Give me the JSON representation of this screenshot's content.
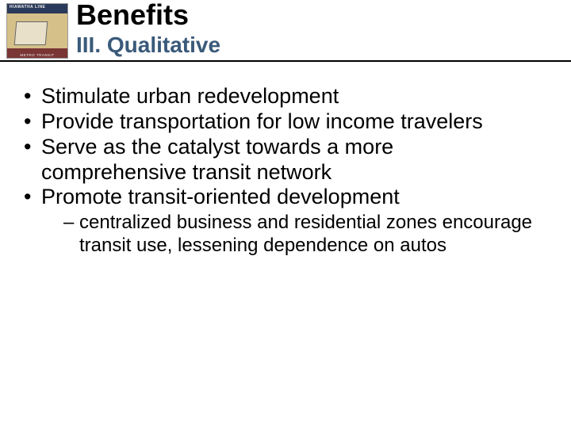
{
  "header": {
    "title": "Benefits",
    "subtitle": "III. Qualitative",
    "title_color": "#000000",
    "subtitle_color": "#3a5a7a",
    "logo": {
      "top_text": "HIAWATHA LINE",
      "bottom_text": "METRO TRANSIT",
      "top_band_color": "#2a3a5a",
      "mid_band_color": "#d4c088",
      "bottom_band_color": "#7a3535"
    }
  },
  "bullets": [
    {
      "text": "Stimulate urban redevelopment"
    },
    {
      "text": "Provide transportation for low income travelers"
    },
    {
      "text": "Serve as the catalyst towards a more comprehensive transit network"
    },
    {
      "text": "Promote transit-oriented development",
      "sub": [
        {
          "text": "centralized business and residential zones encourage transit use, lessening dependence on autos"
        }
      ]
    }
  ],
  "style": {
    "bullet_fontsize": 27,
    "sub_fontsize": 24,
    "title_fontsize": 36,
    "subtitle_fontsize": 28,
    "background_color": "#ffffff",
    "rule_color": "#000000"
  }
}
